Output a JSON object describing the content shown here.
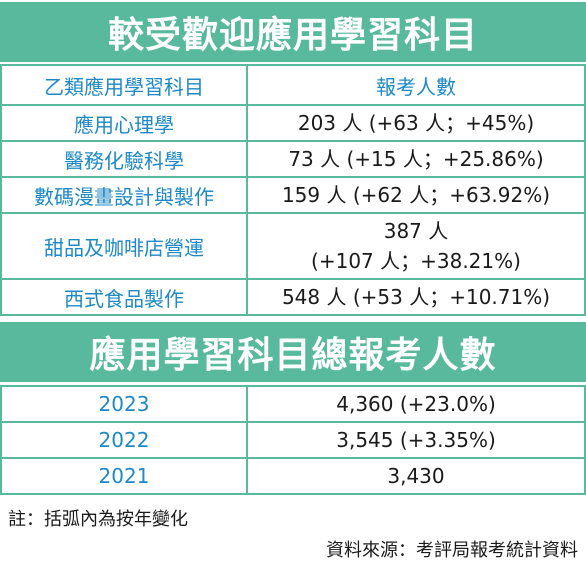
{
  "section1": {
    "title": "較受歡迎應用學習科目",
    "col_subject": "乙類應用學習科目",
    "col_count": "報考人數",
    "rows": [
      {
        "subject": "應用心理學",
        "value": "203 人 (+63 人；+45%)"
      },
      {
        "subject": "醫務化驗科學",
        "value": "73 人 (+15 人；+25.86%)"
      },
      {
        "subject": "數碼漫畫設計與製作",
        "value": "159 人 (+62 人；+63.92%)"
      },
      {
        "subject": "甜品及咖啡店營運",
        "value_line1": "387 人",
        "value_line2": "(+107 人；+38.21%)"
      },
      {
        "subject": "西式食品製作",
        "value": "548 人 (+53 人；+10.71%)"
      }
    ]
  },
  "section2": {
    "title": "應用學習科目總報考人數",
    "rows": [
      {
        "year": "2023",
        "value": "4,360 (+23.0%)"
      },
      {
        "year": "2022",
        "value": "3,545 (+3.35%)"
      },
      {
        "year": "2021",
        "value": "3,430"
      }
    ]
  },
  "footer": {
    "note": "註：括弧內為按年變化",
    "source": "資料來源：考評局報考統計資料"
  },
  "colors": {
    "header_bg": "#58b99c",
    "subject_text": "#1d89c6",
    "border": "#58b99c"
  }
}
